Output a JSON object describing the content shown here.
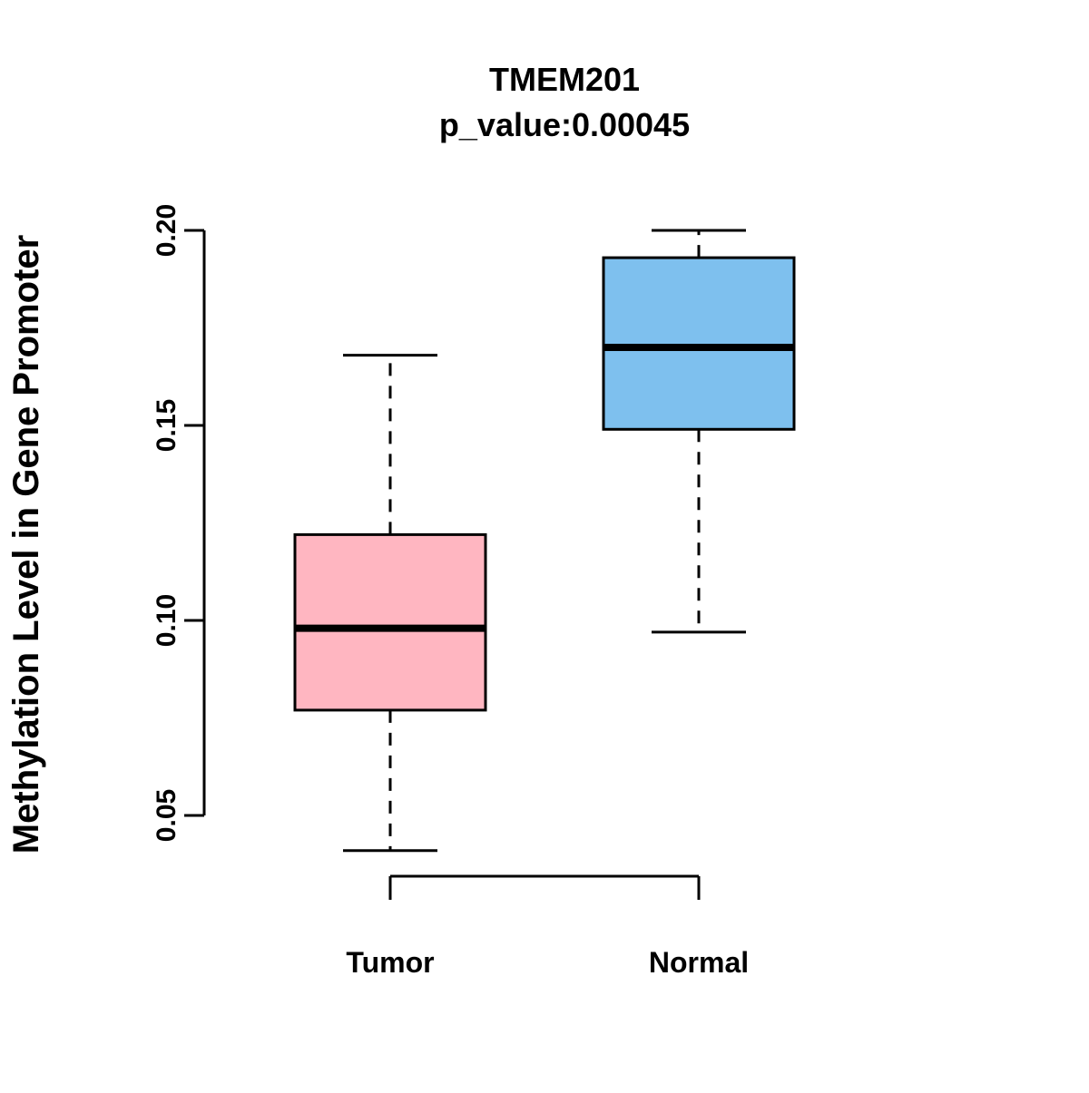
{
  "figure": {
    "title": "TMEM201",
    "subtitle": "p_value:0.00045",
    "ylabel": "Methylation Level in Gene Promoter"
  },
  "chart_data": {
    "type": "boxplot",
    "title": "TMEM201",
    "subtitle": "p_value:0.00045",
    "xlabel": "",
    "ylabel": "Methylation Level in Gene Promoter",
    "categories": [
      "Tumor",
      "Normal"
    ],
    "yticks": [
      0.05,
      0.1,
      0.15,
      0.2
    ],
    "ylim": [
      0.04,
      0.2
    ],
    "grid": false,
    "legend": "none",
    "series": [
      {
        "name": "Tumor",
        "color": "#FFB6C1",
        "min": 0.041,
        "q1": 0.077,
        "median": 0.098,
        "q3": 0.122,
        "max": 0.168
      },
      {
        "name": "Normal",
        "color": "#7EC0EE",
        "min": 0.097,
        "q1": 0.149,
        "median": 0.17,
        "q3": 0.193,
        "max": 0.2
      }
    ]
  }
}
